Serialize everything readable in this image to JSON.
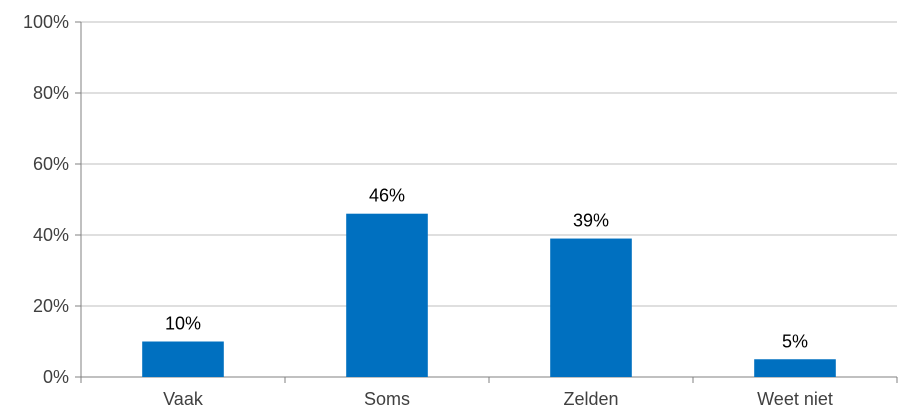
{
  "chart_data": {
    "type": "bar",
    "categories": [
      "Vaak",
      "Soms",
      "Zelden",
      "Weet niet"
    ],
    "values": [
      10,
      46,
      39,
      5
    ],
    "data_labels": [
      "10%",
      "46%",
      "39%",
      "5%"
    ],
    "y_ticks": [
      0,
      20,
      40,
      60,
      80,
      100
    ],
    "y_tick_labels": [
      "0%",
      "20%",
      "40%",
      "60%",
      "80%",
      "100%"
    ],
    "ylim": [
      0,
      100
    ],
    "grid": true,
    "legend": "none",
    "bar_color": "#0070C0",
    "grid_color": "#BFBFBF",
    "axis_color": "#808080"
  }
}
